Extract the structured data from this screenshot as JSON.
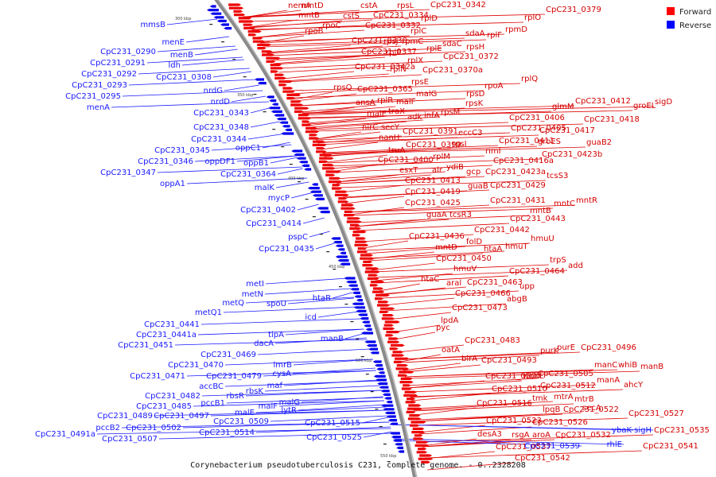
{
  "caption": "Corynebacterium pseudotuberculosis C231, complete genome. - 0..2328208",
  "legend": {
    "items": [
      {
        "label": "Forward",
        "color": "#ff0000"
      },
      {
        "label": "Reverse",
        "color": "#0000ff"
      }
    ]
  },
  "ticks": [
    "300 kbp",
    "350 kbp",
    "400 kbp",
    "450 kbp",
    "500 kbp",
    "550 kbp"
  ],
  "forward_labels": [
    "nemA",
    "mntD",
    "cstA",
    "rpsL",
    "CpC231_0342",
    "CpC231_0379",
    "mntB",
    "cstS",
    "CpC231_0334",
    "rplD",
    "rplO",
    "rpoB",
    "rpoC",
    "CpC231_0332",
    "rpmD",
    "CpC231_0330",
    "rplC",
    "rplF",
    "sdaA",
    "CpC231_0337",
    "rpsJ",
    "rpmC",
    "sdaC",
    "rpsH",
    "rplP",
    "rplE",
    "CpC231_0372",
    "CpC231_0342a",
    "rplX",
    "CpC231_0370a",
    "rplN",
    "rpsQ",
    "CpC231_0365",
    "rpsE",
    "rpsD",
    "rpoA",
    "rplQ",
    "ansA",
    "rplR",
    "malF",
    "malG",
    "traX",
    "malE",
    "adk",
    "infA",
    "rpsM",
    "rpsK",
    "CpC231_0412",
    "groEL",
    "sigD",
    "glmM",
    "nirC",
    "secY",
    "CpC231_0391",
    "eccC3",
    "CpC231_0406",
    "CpC231_0418",
    "nanH",
    "CpC231_0399",
    "rpsI",
    "CpC231_0405",
    "CpC231_0417",
    "truA",
    "CpC231_0411",
    "groES",
    "CpC231_0400",
    "rplM",
    "rimI",
    "guaB2",
    "esxT",
    "alr",
    "ydiB",
    "CpC231_0416a",
    "CpC231_0423b",
    "gcp",
    "CpC231_0423a",
    "tcsS3",
    "CpC231_0413",
    "guaB",
    "CpC231_0429",
    "CpC231_0419",
    "CpC231_0431",
    "CpC231_0425",
    "mntB",
    "mntC",
    "mntR",
    "guaA",
    "tcsR3",
    "CpC231_0443",
    "CpC231_0442",
    "CpC231_0436",
    "folD",
    "hmuU",
    "mntD",
    "hmuT",
    "htaA",
    "CpC231_0450",
    "trpS",
    "add",
    "hmuV",
    "CpC231_0464",
    "htaC",
    "aral",
    "CpC231_0463",
    "upp",
    "CpC231_0466",
    "abgB",
    "CpC231_0473",
    "lpdA",
    "pyc",
    "CpC231_0483",
    "oatA",
    "birA",
    "CpC231_0493",
    "purK",
    "purE",
    "CpC231_0496",
    "manC",
    "whiB",
    "manB",
    "CpC231_0500",
    "wbbL",
    "CpC231_0505",
    "manA",
    "ahcY",
    "CpC231_0510",
    "CpC231_0512",
    "tmk",
    "mtrA",
    "mtrB",
    "CpC231_0516",
    "lpqB",
    "CpC231_0522",
    "secA",
    "CpC231_0527",
    "CpC231_0523",
    "CpC231_0526",
    "CpC231_0535",
    "desA3",
    "rsgA",
    "aroA",
    "CpC231_0532",
    "CpC231_0541",
    "CpC231_0537",
    "CpC231_0542"
  ],
  "reverse_labels": [
    "mmsB",
    "menE",
    "CpC231_0290",
    "menB",
    "CpC231_0291",
    "ldh",
    "CpC231_0292",
    "CpC231_0308",
    "CpC231_0293",
    "CpC231_0295",
    "menA",
    "nrdG",
    "nrdD",
    "CpC231_0343",
    "CpC231_0348",
    "CpC231_0344",
    "CpC231_0345",
    "oppC1",
    "CpC231_0346",
    "oppDF1",
    "oppB1",
    "CpC231_0347",
    "CpC231_0364",
    "oppA1",
    "malK",
    "mycP",
    "CpC231_0402",
    "CpC231_0414",
    "pspC",
    "CpC231_0435",
    "metI",
    "metN",
    "metQ",
    "spoU",
    "htaB",
    "metQ1",
    "icd",
    "CpC231_0441",
    "CpC231_0441a",
    "tipA",
    "manB",
    "dacA",
    "CpC231_0451",
    "CpC231_0469",
    "CpC231_0470",
    "lmrB",
    "CpC231_0471",
    "CpC231_0479",
    "cysA",
    "accBC",
    "maf",
    "CpC231_0482",
    "rbsR",
    "rbsK",
    "CpC231_0485",
    "pccB1",
    "malG",
    "malF",
    "lytR",
    "malE",
    "CpC231_0489",
    "CpC231_0497",
    "CpC231_0509",
    "CpC231_0515",
    "pccB2",
    "CpC231_0502",
    "CpC231_0491a",
    "CpC231_0514",
    "CpC231_0507",
    "CpC231_0525",
    "ybaK",
    "sigH",
    "CpC231_0539",
    "rhlE"
  ]
}
